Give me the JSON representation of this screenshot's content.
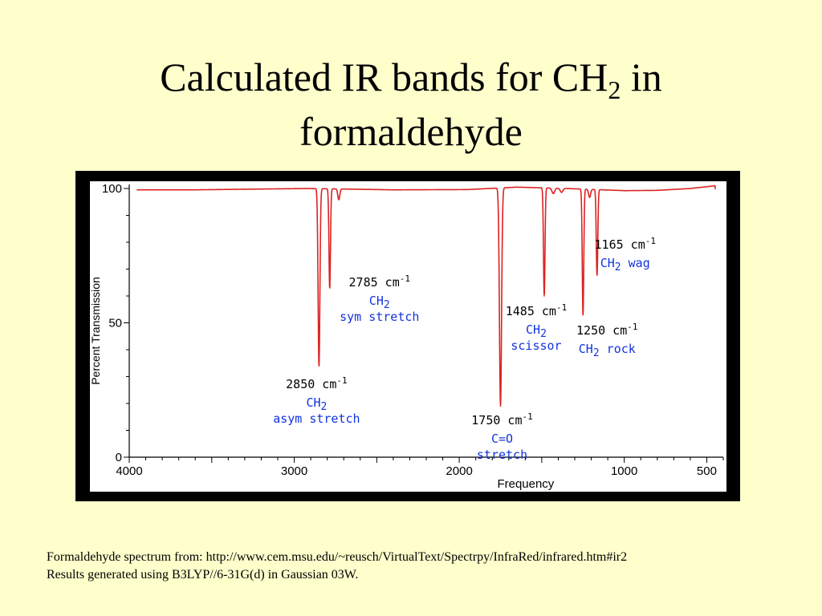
{
  "slide": {
    "title_main": "Calculated IR bands for CH",
    "title_sub": "2",
    "title_tail": " in",
    "title_line2": "formaldehyde"
  },
  "footer": {
    "line1": "Formaldehyde spectrum from:  http://www.cem.msu.edu/~reusch/VirtualText/Spectrpy/InfraRed/infrared.htm#ir2",
    "line2": "Results generated using B3LYP//6-31G(d) in Gaussian 03W."
  },
  "colors": {
    "background": "#ffffcc",
    "trace": "#dd2222",
    "annotation_blue": "#1133dd",
    "annotation_black": "#000000"
  },
  "chart_data": {
    "type": "line",
    "xlabel": "Frequency",
    "ylabel": "Percent Transmission",
    "xlim": [
      4000,
      400
    ],
    "ylim": [
      0,
      100
    ],
    "x_reversed": true,
    "grid": false,
    "x_ticks": [
      4000,
      3000,
      2000,
      1000,
      500
    ],
    "y_ticks": [
      0,
      50,
      100
    ],
    "baseline": [
      {
        "x": 4000,
        "y": 100
      },
      {
        "x": 3950,
        "y": 99.5
      },
      {
        "x": 3600,
        "y": 99.5
      },
      {
        "x": 3200,
        "y": 99.8
      },
      {
        "x": 2900,
        "y": 100
      },
      {
        "x": 2400,
        "y": 99.5
      },
      {
        "x": 1950,
        "y": 99.6
      },
      {
        "x": 1650,
        "y": 100.5
      },
      {
        "x": 1350,
        "y": 100
      },
      {
        "x": 1000,
        "y": 99.2
      },
      {
        "x": 800,
        "y": 99.3
      },
      {
        "x": 600,
        "y": 100
      },
      {
        "x": 450,
        "y": 101
      }
    ],
    "peaks": [
      {
        "x": 2850,
        "y": 34,
        "width": 12,
        "label": "2850 cm",
        "exp": "-1",
        "mode_line1": "CH",
        "mode_sub": "2",
        "mode_tail": "",
        "mode_line2": "asym stretch"
      },
      {
        "x": 2785,
        "y": 63,
        "width": 10,
        "label": "2785 cm",
        "exp": "-1",
        "mode_line1": "CH",
        "mode_sub": "2",
        "mode_tail": "",
        "mode_line2": "sym stretch"
      },
      {
        "x": 1750,
        "y": 19,
        "width": 14,
        "label": "1750 cm",
        "exp": "-1",
        "mode_line1": "C=O",
        "mode_sub": "",
        "mode_tail": "",
        "mode_line2": "stretch"
      },
      {
        "x": 1485,
        "y": 60,
        "width": 10,
        "label": "1485 cm",
        "exp": "-1",
        "mode_line1": "CH",
        "mode_sub": "2",
        "mode_tail": "",
        "mode_line2": "scissor"
      },
      {
        "x": 1250,
        "y": 53,
        "width": 10,
        "label": "1250 cm",
        "exp": "-1",
        "mode_line1": "CH",
        "mode_sub": "2",
        "mode_tail": " rock",
        "mode_line2": ""
      },
      {
        "x": 1165,
        "y": 68,
        "width": 10,
        "label": "1165 cm",
        "exp": "-1",
        "mode_line1": "CH",
        "mode_sub": "2",
        "mode_tail": " wag",
        "mode_line2": ""
      }
    ]
  }
}
